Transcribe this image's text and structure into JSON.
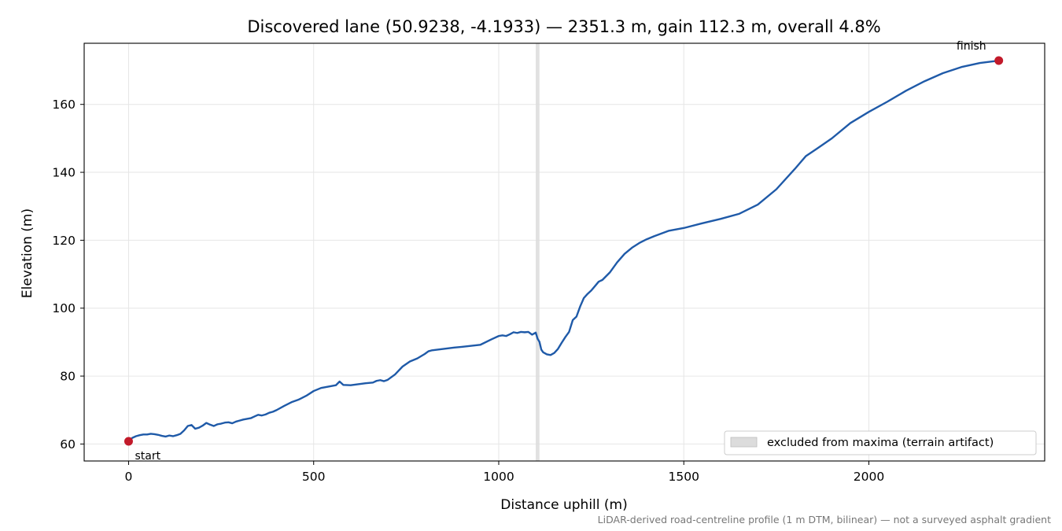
{
  "chart_data": {
    "type": "line",
    "title": "Discovered lane (50.9238, -4.1933) — 2351.3 m, gain 112.3 m, overall 4.8%",
    "xlabel": "Distance uphill (m)",
    "ylabel": "Elevation (m)",
    "xlim": [
      -120,
      2475
    ],
    "ylim": [
      55,
      178
    ],
    "xticks": [
      "0",
      "500",
      "1000",
      "1500",
      "2000"
    ],
    "yticks": [
      "60",
      "80",
      "100",
      "120",
      "140",
      "160"
    ],
    "grid": true,
    "legend_position": "bottom-right",
    "excluded_band": {
      "x_start": 1100,
      "x_end": 1110,
      "label": "excluded from maxima (terrain artifact)"
    },
    "series": [
      {
        "color": "#1f5aa8",
        "x": [
          0,
          10,
          20,
          30,
          40,
          50,
          60,
          70,
          80,
          90,
          100,
          110,
          120,
          130,
          140,
          150,
          160,
          170,
          180,
          190,
          200,
          210,
          220,
          230,
          240,
          250,
          260,
          270,
          280,
          290,
          300,
          310,
          320,
          330,
          340,
          350,
          360,
          370,
          380,
          390,
          400,
          420,
          440,
          460,
          480,
          500,
          520,
          540,
          560,
          570,
          580,
          600,
          620,
          640,
          660,
          670,
          680,
          690,
          700,
          720,
          740,
          760,
          780,
          800,
          810,
          820,
          850,
          880,
          900,
          950,
          980,
          1000,
          1010,
          1020,
          1030,
          1040,
          1050,
          1060,
          1070,
          1080,
          1090,
          1100,
          1105,
          1110,
          1115,
          1120,
          1130,
          1140,
          1150,
          1160,
          1170,
          1180,
          1190,
          1200,
          1210,
          1220,
          1230,
          1240,
          1250,
          1260,
          1270,
          1280,
          1300,
          1320,
          1340,
          1360,
          1380,
          1400,
          1420,
          1440,
          1460,
          1480,
          1500,
          1550,
          1600,
          1650,
          1700,
          1750,
          1800,
          1830,
          1860,
          1880,
          1900,
          1950,
          2000,
          2050,
          2100,
          2150,
          2200,
          2250,
          2300,
          2351
        ],
        "y": [
          60.8,
          61.8,
          62.3,
          62.6,
          62.8,
          62.8,
          63.0,
          62.9,
          62.7,
          62.4,
          62.2,
          62.5,
          62.3,
          62.6,
          63.0,
          64.0,
          65.3,
          65.6,
          64.5,
          64.8,
          65.4,
          66.2,
          65.7,
          65.3,
          65.8,
          66.0,
          66.3,
          66.4,
          66.1,
          66.6,
          66.9,
          67.2,
          67.4,
          67.6,
          68.1,
          68.6,
          68.4,
          68.7,
          69.2,
          69.5,
          70.0,
          71.2,
          72.3,
          73.1,
          74.2,
          75.6,
          76.5,
          76.9,
          77.3,
          78.4,
          77.4,
          77.3,
          77.6,
          77.9,
          78.1,
          78.6,
          78.8,
          78.5,
          78.9,
          80.5,
          82.8,
          84.3,
          85.2,
          86.5,
          87.3,
          87.6,
          88.0,
          88.4,
          88.6,
          89.2,
          90.8,
          91.8,
          92.0,
          91.8,
          92.3,
          92.9,
          92.7,
          93.0,
          92.9,
          93.0,
          92.2,
          92.8,
          91.0,
          90.1,
          87.8,
          87.0,
          86.4,
          86.2,
          86.8,
          88.0,
          89.8,
          91.5,
          93.0,
          96.5,
          97.5,
          100.5,
          103.0,
          104.2,
          105.2,
          106.5,
          107.8,
          108.3,
          110.5,
          113.5,
          116.0,
          117.8,
          119.2,
          120.3,
          121.2,
          122.0,
          122.8,
          123.2,
          123.6,
          125.0,
          126.3,
          127.8,
          130.5,
          135.0,
          141.0,
          144.8,
          147.0,
          148.5,
          150.0,
          154.5,
          157.8,
          160.8,
          164.0,
          166.8,
          169.2,
          171.0,
          172.2,
          172.9
        ]
      }
    ],
    "annotations": [
      {
        "text": "start",
        "x": 0,
        "y": 60.8,
        "marker_color": "#c21a2a"
      },
      {
        "text": "finish",
        "x": 2351,
        "y": 172.9,
        "marker_color": "#c21a2a"
      }
    ],
    "footnote": "LiDAR-derived road-centreline profile (1 m DTM, bilinear) — not a surveyed asphalt gradient",
    "colors": {
      "line": "#1f5aa8",
      "marker": "#c21a2a",
      "band": "#dcdcdc",
      "grid": "#e6e6e6"
    }
  }
}
